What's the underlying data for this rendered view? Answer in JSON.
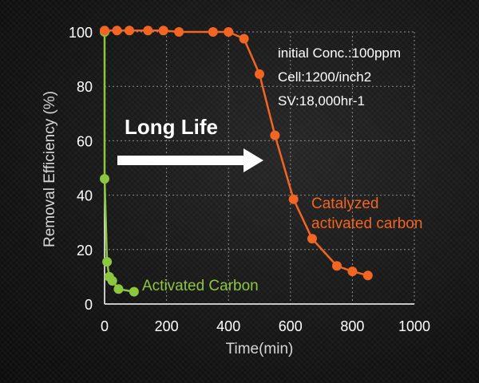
{
  "chart_data": {
    "type": "line",
    "xlabel": "Time(min)",
    "ylabel": "Removal Efficiency (%)",
    "xlim": [
      0,
      1000
    ],
    "ylim": [
      0,
      100
    ],
    "xticks": [
      "0",
      "200",
      "400",
      "600",
      "800",
      "1000"
    ],
    "yticks": [
      "0",
      "20",
      "40",
      "60",
      "80",
      "100"
    ],
    "grid": "dashed",
    "series": [
      {
        "name": "Activated Carbon",
        "color": "#8dc63f",
        "x": [
          0,
          0,
          8,
          15,
          25,
          45,
          95
        ],
        "y": [
          100,
          46,
          15.5,
          10,
          8.5,
          5.5,
          4.5
        ]
      },
      {
        "name": "Catalyzed activated carbon",
        "color": "#f26522",
        "x": [
          0,
          40,
          80,
          140,
          190,
          240,
          350,
          400,
          450,
          500,
          550,
          610,
          670,
          750,
          800,
          850
        ],
        "y": [
          100.5,
          100.5,
          100.5,
          100.5,
          100.5,
          100,
          100,
          100,
          97.5,
          84.5,
          62,
          38.5,
          24,
          14,
          12,
          10.5
        ]
      }
    ],
    "annotations": {
      "conditions": [
        "initial Conc.:100ppm",
        "Cell:1200/inch2",
        "SV:18,000hr-1"
      ],
      "arrow_label": "Long Life"
    }
  }
}
